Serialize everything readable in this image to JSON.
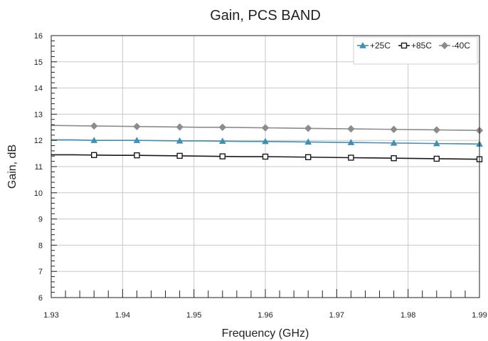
{
  "chart_data": {
    "type": "line",
    "title": "Gain, PCS BAND",
    "xlabel": "Frequency (GHz)",
    "ylabel": "Gain, dB",
    "xlim": [
      1.93,
      1.99
    ],
    "ylim": [
      6,
      16
    ],
    "x_ticks": [
      "1.93",
      "1.94",
      "1.95",
      "1.96",
      "1.97",
      "1.98",
      "1.99"
    ],
    "y_ticks": [
      "6",
      "7",
      "8",
      "9",
      "10",
      "11",
      "12",
      "13",
      "14",
      "15",
      "16"
    ],
    "grid": true,
    "legend_position": "top-right",
    "marker_x": [
      1.936,
      1.942,
      1.948,
      1.954,
      1.96,
      1.966,
      1.972,
      1.978,
      1.984,
      1.99
    ],
    "x": [
      1.93,
      1.933,
      1.936,
      1.939,
      1.942,
      1.945,
      1.948,
      1.951,
      1.954,
      1.957,
      1.96,
      1.963,
      1.966,
      1.969,
      1.972,
      1.975,
      1.978,
      1.981,
      1.984,
      1.987,
      1.99
    ],
    "series": [
      {
        "name": "+25C",
        "color": "#3f8fb5",
        "marker": "triangle",
        "values": [
          12.02,
          12.02,
          12.0,
          12.0,
          12.0,
          11.99,
          11.98,
          11.98,
          11.97,
          11.96,
          11.96,
          11.95,
          11.94,
          11.93,
          11.92,
          11.91,
          11.9,
          11.89,
          11.88,
          11.87,
          11.86
        ]
      },
      {
        "name": "+85C",
        "color": "#1a1a1a",
        "marker": "square",
        "values": [
          11.45,
          11.45,
          11.44,
          11.43,
          11.43,
          11.42,
          11.41,
          11.4,
          11.39,
          11.38,
          11.38,
          11.37,
          11.36,
          11.35,
          11.34,
          11.33,
          11.32,
          11.31,
          11.3,
          11.29,
          11.28
        ]
      },
      {
        "name": "-40C",
        "color": "#8c8c8c",
        "marker": "diamond",
        "values": [
          12.57,
          12.56,
          12.55,
          12.54,
          12.53,
          12.52,
          12.51,
          12.5,
          12.5,
          12.49,
          12.48,
          12.47,
          12.46,
          12.45,
          12.44,
          12.43,
          12.42,
          12.41,
          12.4,
          12.39,
          12.38
        ]
      }
    ]
  }
}
